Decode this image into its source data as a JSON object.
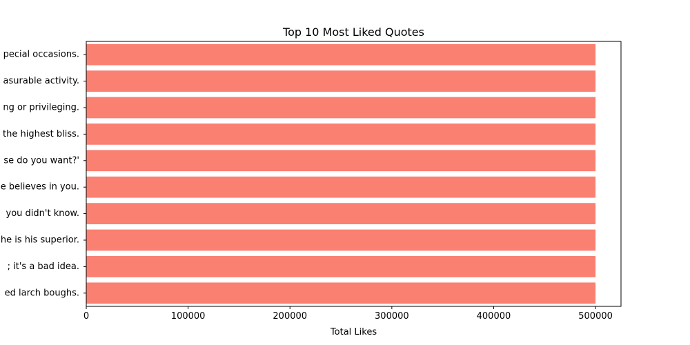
{
  "chart_data": {
    "type": "bar",
    "orientation": "horizontal",
    "title": "Top 10 Most Liked Quotes",
    "xlabel": "Total Likes",
    "ylabel": "",
    "xlim": [
      0,
      525000
    ],
    "xticks": [
      0,
      100000,
      200000,
      300000,
      400000,
      500000
    ],
    "xtick_labels": [
      "0",
      "100000",
      "200000",
      "300000",
      "400000",
      "500000"
    ],
    "grid": false,
    "legend": "none",
    "bar_color": "#fa8072",
    "categories": [
      "pecial occasions.",
      "asurable activity.",
      "ng or privileging.",
      "the highest bliss.",
      "se do you want?'",
      "e believes in you.",
      "you didn't know.",
      "he is his superior.",
      "; it's a bad idea.",
      "ed larch boughs."
    ],
    "values": [
      500000,
      500000,
      500000,
      500000,
      500000,
      500000,
      500000,
      500000,
      500000,
      500000
    ]
  }
}
